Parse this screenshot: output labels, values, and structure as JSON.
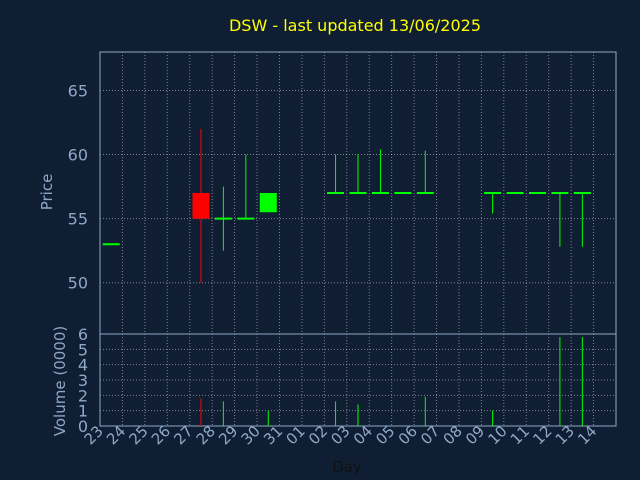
{
  "chart_data": {
    "type": "candlestick",
    "title": "DSW - last updated 13/06/2025",
    "xlabel": "Day",
    "ylabel": "Price",
    "volume_label": "Volume (0000)",
    "categories": [
      "23",
      "24",
      "25",
      "26",
      "27",
      "28",
      "29",
      "30",
      "31",
      "01",
      "02",
      "03",
      "04",
      "05",
      "06",
      "07",
      "08",
      "09",
      "10",
      "11",
      "12",
      "13",
      "14"
    ],
    "price_ylim": [
      46,
      68
    ],
    "price_ticks": [
      50,
      55,
      60,
      65
    ],
    "volume_ylim": [
      0,
      6
    ],
    "volume_ticks": [
      0,
      1,
      2,
      3,
      4,
      5,
      6
    ],
    "grid": true,
    "colors": {
      "up": "#00ff00",
      "down": "#ff0000",
      "title": "#ffff00",
      "axis_text": "#8fa8c8",
      "grid": "#c8c8c8"
    },
    "candles": [
      {
        "day": "23",
        "open": 53.0,
        "high": 53.0,
        "low": 53.0,
        "close": 53.0,
        "volume": 0,
        "color": "up"
      },
      {
        "day": "27",
        "open": 57.0,
        "high": 62.0,
        "low": 50.0,
        "close": 55.0,
        "volume": 1.8,
        "color": "down"
      },
      {
        "day": "28",
        "open": 55.0,
        "high": 57.5,
        "low": 52.5,
        "close": 55.0,
        "volume": 1.6,
        "color": "up"
      },
      {
        "day": "29",
        "open": 55.0,
        "high": 60.0,
        "low": 55.0,
        "close": 55.0,
        "volume": 0,
        "color": "up"
      },
      {
        "day": "30",
        "open": 55.5,
        "high": 57.0,
        "low": 55.5,
        "close": 57.0,
        "volume": 1.0,
        "color": "up"
      },
      {
        "day": "02",
        "open": 57.0,
        "high": 60.0,
        "low": 57.0,
        "close": 57.0,
        "volume": 1.6,
        "color": "up"
      },
      {
        "day": "03",
        "open": 57.0,
        "high": 60.0,
        "low": 57.0,
        "close": 57.0,
        "volume": 1.4,
        "color": "up"
      },
      {
        "day": "04",
        "open": 57.0,
        "high": 60.4,
        "low": 57.0,
        "close": 57.0,
        "volume": 0,
        "color": "up"
      },
      {
        "day": "05",
        "open": 57.0,
        "high": 57.0,
        "low": 57.0,
        "close": 57.0,
        "volume": 0,
        "color": "up"
      },
      {
        "day": "06",
        "open": 57.0,
        "high": 60.3,
        "low": 57.0,
        "close": 57.0,
        "volume": 1.9,
        "color": "up"
      },
      {
        "day": "09",
        "open": 57.0,
        "high": 57.0,
        "low": 55.4,
        "close": 57.0,
        "volume": 1.0,
        "color": "up"
      },
      {
        "day": "10",
        "open": 57.0,
        "high": 57.0,
        "low": 57.0,
        "close": 57.0,
        "volume": 0,
        "color": "up"
      },
      {
        "day": "11",
        "open": 57.0,
        "high": 57.0,
        "low": 57.0,
        "close": 57.0,
        "volume": 0,
        "color": "up"
      },
      {
        "day": "12",
        "open": 57.0,
        "high": 57.0,
        "low": 52.8,
        "close": 57.0,
        "volume": 5.8,
        "color": "up"
      },
      {
        "day": "13",
        "open": 57.0,
        "high": 57.0,
        "low": 52.8,
        "close": 57.0,
        "volume": 5.8,
        "color": "up"
      }
    ]
  }
}
